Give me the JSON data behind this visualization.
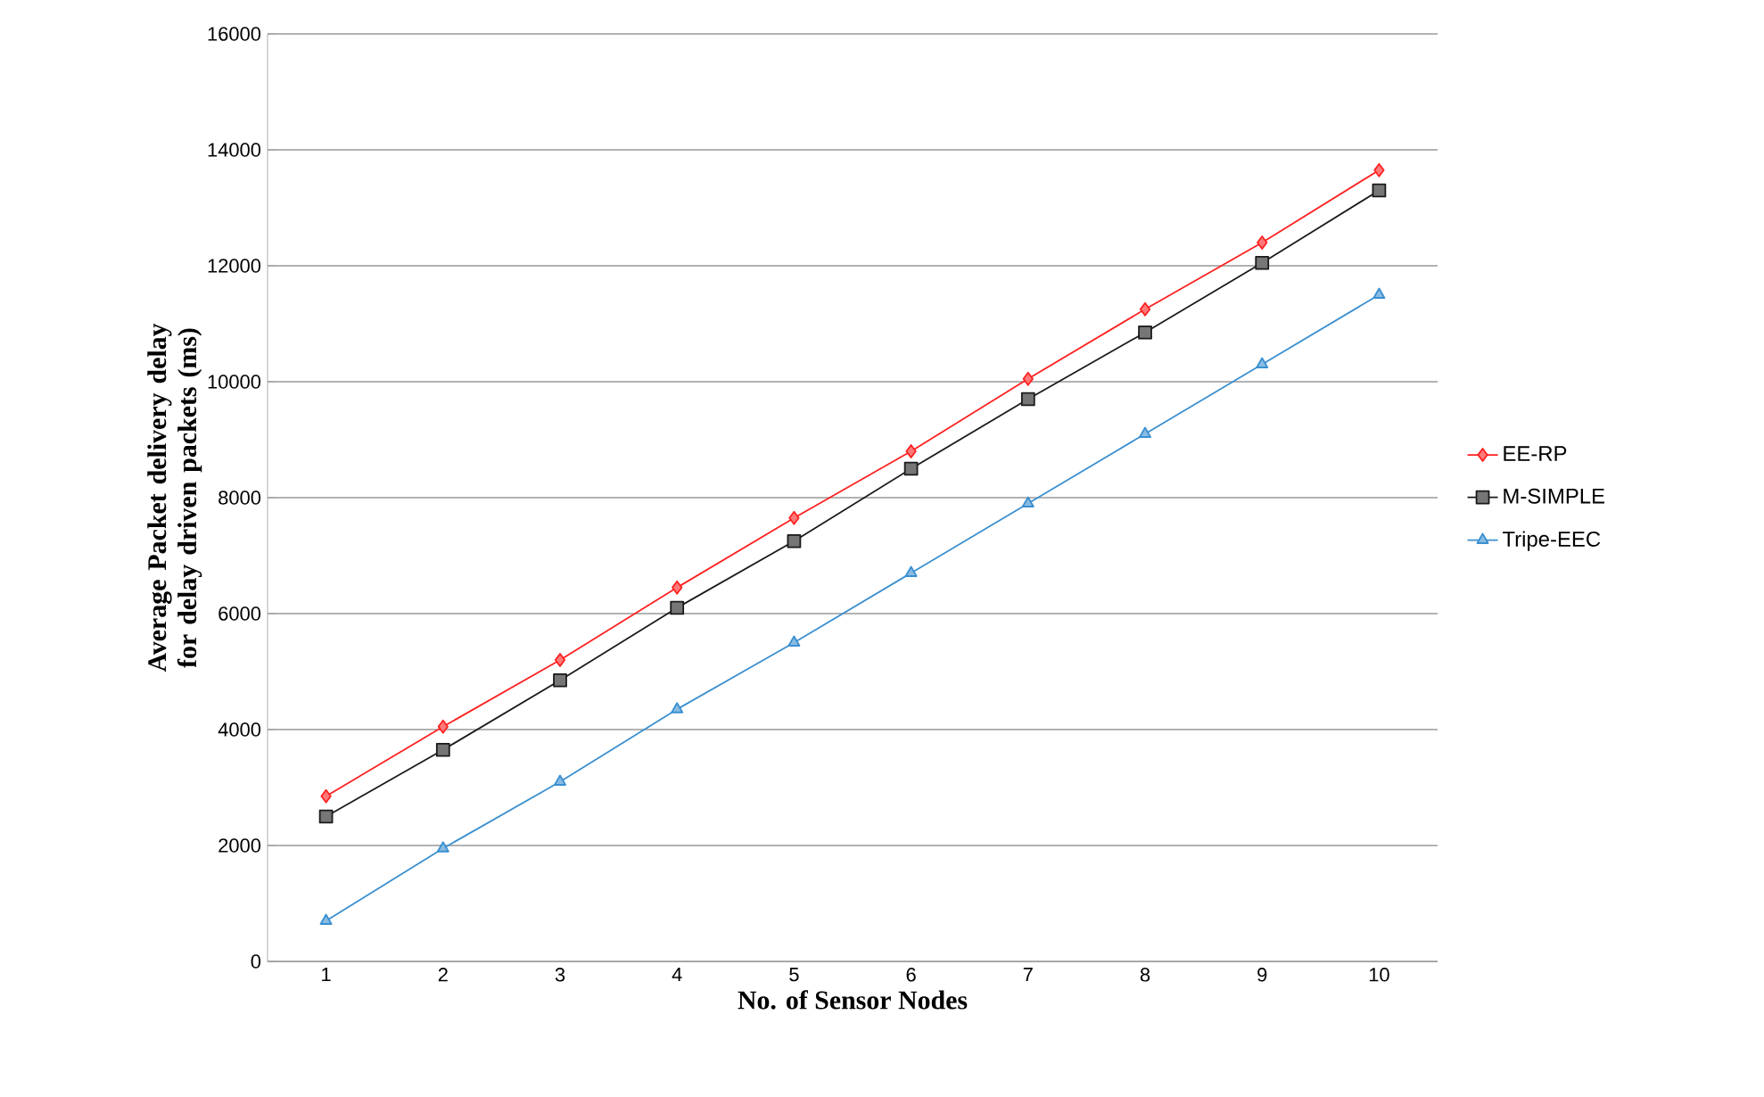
{
  "chart_data": {
    "type": "line",
    "xlabel": "No. of Sensor Nodes",
    "ylabel": "Average Packet delivery delay for delay driven packets (ms)",
    "categories": [
      "1",
      "2",
      "3",
      "4",
      "5",
      "6",
      "7",
      "8",
      "9",
      "10"
    ],
    "series": [
      {
        "name": "EE-RP",
        "color": "#ff2020",
        "marker": "diamond",
        "values": [
          2850,
          4050,
          5200,
          6450,
          7650,
          8800,
          10050,
          11250,
          12400,
          13650
        ]
      },
      {
        "name": "M-SIMPLE",
        "color": "#1a1a1a",
        "marker": "square",
        "values": [
          2500,
          3650,
          4850,
          6100,
          7250,
          8500,
          9700,
          10850,
          12050,
          13300
        ]
      },
      {
        "name": "Tripe-EEC",
        "color": "#3a8fd0",
        "marker": "triangle",
        "values": [
          700,
          1950,
          3100,
          4350,
          5500,
          6700,
          7900,
          9100,
          10300,
          11500
        ]
      }
    ],
    "ylim": [
      0,
      16000
    ],
    "yticks": [
      0,
      2000,
      4000,
      6000,
      8000,
      10000,
      12000,
      14000,
      16000
    ],
    "grid": "y",
    "legend": "right"
  }
}
